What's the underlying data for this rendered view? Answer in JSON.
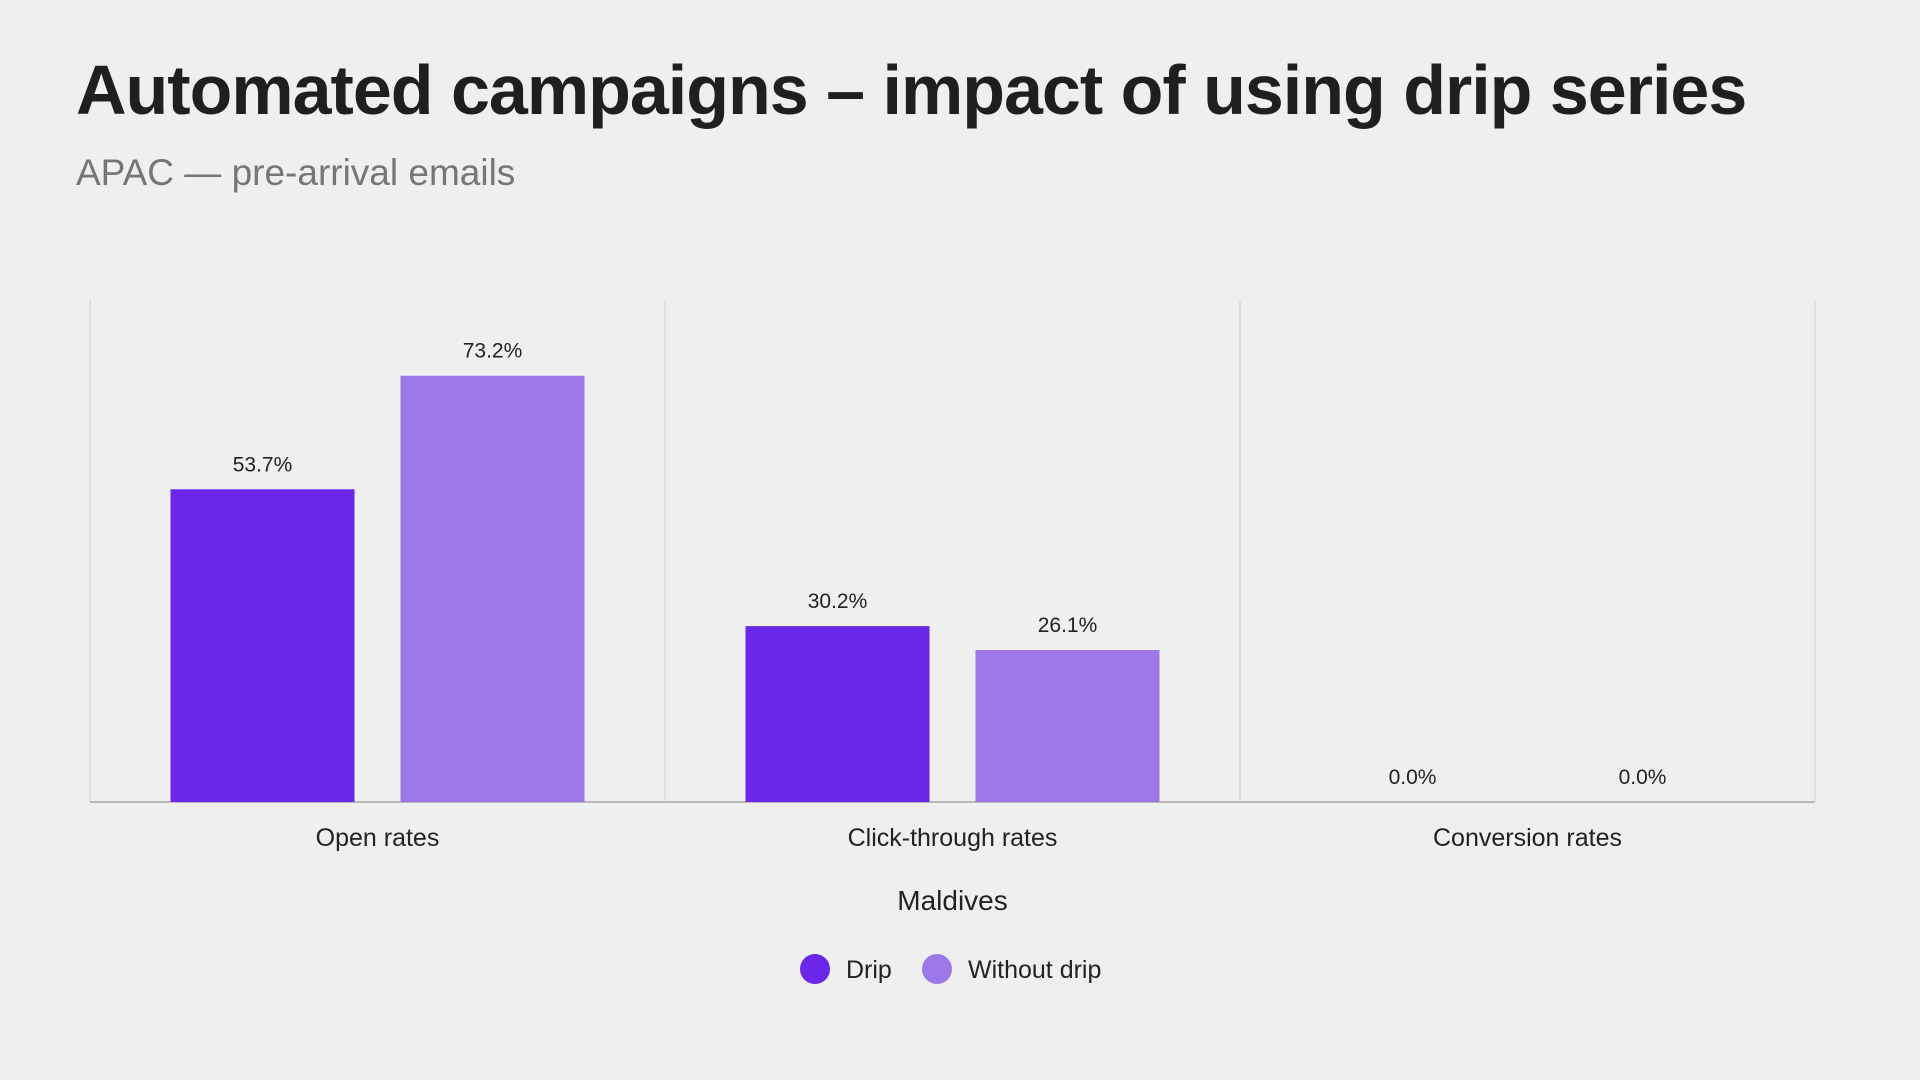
{
  "chart_data": {
    "type": "bar",
    "title": "Automated campaigns – impact of using drip series",
    "subtitle": "APAC — pre-arrival emails",
    "xlabel": "Maldives",
    "ylabel": "",
    "ylim": [
      0,
      80
    ],
    "grid": false,
    "legend_position": "bottom-center",
    "categories": [
      "Open rates",
      "Click-through rates",
      "Conversion rates"
    ],
    "series": [
      {
        "name": "Drip",
        "color": "#6a27ea",
        "values": [
          53.7,
          30.2,
          0.0
        ],
        "labels": [
          "53.7%",
          "30.2%",
          "0.0%"
        ]
      },
      {
        "name": "Without drip",
        "color": "#9c78e8",
        "values": [
          73.2,
          26.1,
          0.0
        ],
        "labels": [
          "73.2%",
          "26.1%",
          "0.0%"
        ]
      }
    ]
  }
}
